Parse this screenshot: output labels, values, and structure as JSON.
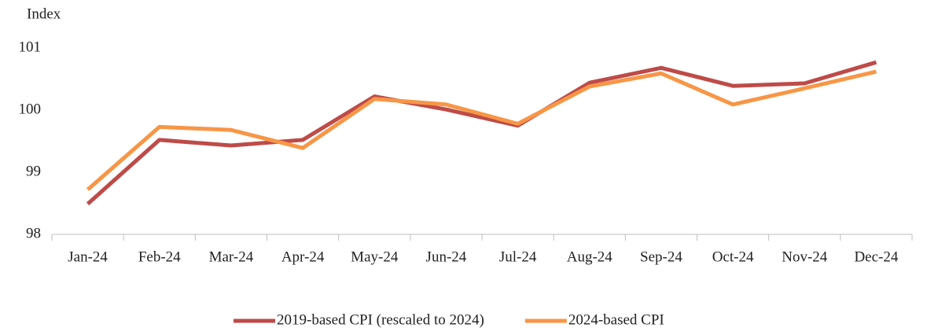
{
  "chart_data": {
    "type": "line",
    "y_axis_label": "Index",
    "categories": [
      "Jan-24",
      "Feb-24",
      "Mar-24",
      "Apr-24",
      "May-24",
      "Jun-24",
      "Jul-24",
      "Aug-24",
      "Sep-24",
      "Oct-24",
      "Nov-24",
      "Dec-24"
    ],
    "series": [
      {
        "name": "2019-based CPI (rescaled to 2024)",
        "color": "#be4b48",
        "values": [
          98.49,
          99.52,
          99.43,
          99.52,
          100.22,
          100.01,
          99.75,
          100.44,
          100.68,
          100.39,
          100.43,
          100.77
        ]
      },
      {
        "name": "2024-based CPI",
        "color": "#f79646",
        "values": [
          98.72,
          99.73,
          99.68,
          99.39,
          100.18,
          100.09,
          99.78,
          100.38,
          100.59,
          100.09,
          100.35,
          100.62
        ]
      }
    ],
    "ylim": [
      98,
      101
    ],
    "yticks": [
      98,
      99,
      100,
      101
    ],
    "grid": false,
    "legend": "bottom"
  }
}
